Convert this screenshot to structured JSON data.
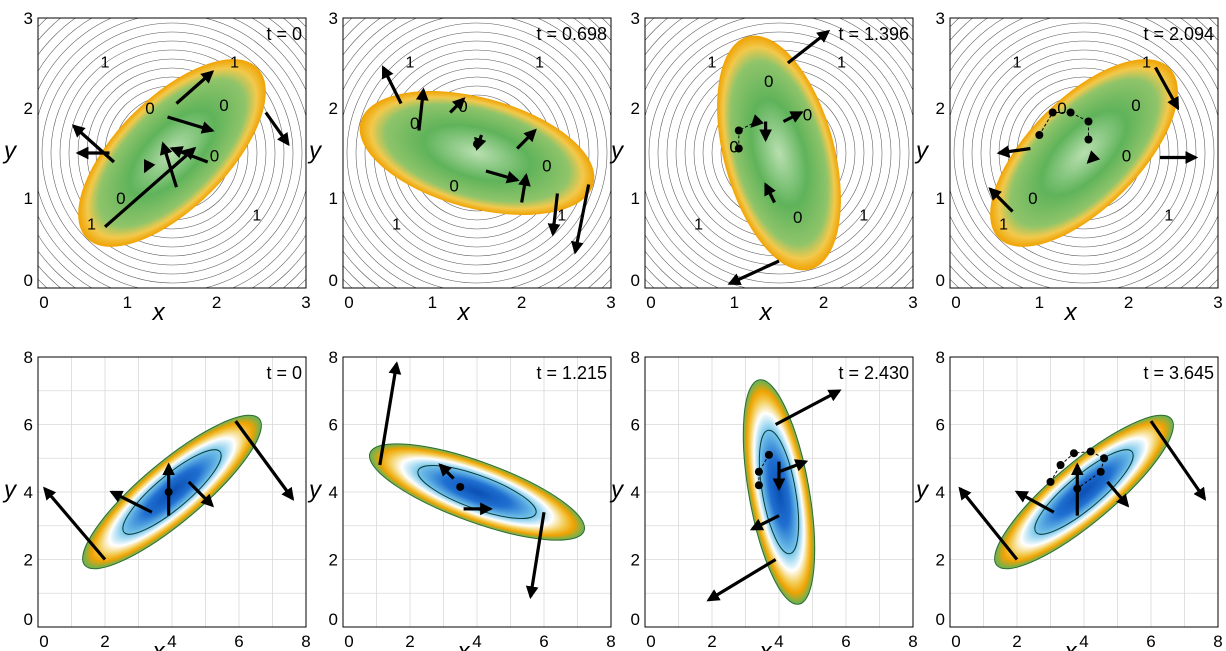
{
  "colors": {
    "green": "#5fb35a",
    "yellow": "#f2c94c",
    "orange": "#f0a202",
    "blue": "#1f6fd1",
    "cyan": "#77c7ea",
    "contour": "#111111",
    "grid": "#d9d9d9"
  },
  "panels": [
    {
      "row": 0,
      "col": 0,
      "range": [
        0,
        3
      ],
      "ticks": [
        0,
        1,
        2,
        3
      ],
      "time_label": "t = 0",
      "x_label": "x",
      "y_label": "y",
      "ellipse": {
        "cx": 1.5,
        "cy": 1.5,
        "a": 1.35,
        "b": 0.62,
        "angle": 45
      },
      "zero_labels": [
        "0",
        "0",
        "0",
        "0"
      ],
      "one_labels": [
        "1",
        "1",
        "1",
        "1"
      ],
      "arrows": [
        [
          0.75,
          0.68,
          1.75,
          1.55
        ],
        [
          1.55,
          1.12,
          1.4,
          1.6
        ],
        [
          1.45,
          1.9,
          1.95,
          1.75
        ],
        [
          2.55,
          1.95,
          2.8,
          1.6
        ],
        [
          0.85,
          1.4,
          0.4,
          1.8
        ],
        [
          0.8,
          1.5,
          0.45,
          1.5
        ],
        [
          1.55,
          2.05,
          1.95,
          2.4
        ],
        [
          1.9,
          1.4,
          1.5,
          1.55
        ],
        [
          1.25,
          1.4,
          1.2,
          1.3
        ]
      ],
      "dots": [],
      "heat_scheme": "phase"
    },
    {
      "row": 0,
      "col": 1,
      "range": [
        0,
        3
      ],
      "ticks": [
        0,
        1,
        2,
        3
      ],
      "time_label": "t = 0.698",
      "x_label": "x",
      "y_label": "y",
      "ellipse": {
        "cx": 1.5,
        "cy": 1.5,
        "a": 1.35,
        "b": 0.62,
        "angle": 165
      },
      "zero_labels": [
        "0",
        "0",
        "0",
        "0"
      ],
      "one_labels": [
        "1",
        "1",
        "1",
        "1"
      ],
      "arrows": [
        [
          0.65,
          2.05,
          0.45,
          2.45
        ],
        [
          0.85,
          1.75,
          0.9,
          2.2
        ],
        [
          1.2,
          1.95,
          1.35,
          2.1
        ],
        [
          1.55,
          1.7,
          1.5,
          1.55
        ],
        [
          1.95,
          1.55,
          2.15,
          1.75
        ],
        [
          1.6,
          1.3,
          1.95,
          1.2
        ],
        [
          2.0,
          0.95,
          2.05,
          1.25
        ],
        [
          2.4,
          1.05,
          2.35,
          0.6
        ],
        [
          2.75,
          1.15,
          2.6,
          0.4
        ]
      ],
      "dots": [
        [
          1.5,
          1.6
        ]
      ],
      "heat_scheme": "phase"
    },
    {
      "row": 0,
      "col": 2,
      "range": [
        0,
        3
      ],
      "ticks": [
        0,
        1,
        2,
        3
      ],
      "time_label": "t = 1.396",
      "x_label": "x",
      "y_label": "y",
      "ellipse": {
        "cx": 1.5,
        "cy": 1.5,
        "a": 1.35,
        "b": 0.62,
        "angle": 105
      },
      "zero_labels": [
        "0",
        "0",
        "0",
        "0"
      ],
      "one_labels": [
        "1",
        "1",
        "1",
        "1"
      ],
      "arrows": [
        [
          1.6,
          2.5,
          2.05,
          2.85
        ],
        [
          1.55,
          1.85,
          1.75,
          1.95
        ],
        [
          1.35,
          1.85,
          1.35,
          1.65
        ],
        [
          1.45,
          0.95,
          1.35,
          1.15
        ],
        [
          1.5,
          0.3,
          0.95,
          0.05
        ],
        [
          1.25,
          1.85,
          1.2,
          1.8
        ]
      ],
      "dots": [
        [
          1.05,
          1.55
        ],
        [
          1.05,
          1.75
        ],
        [
          1.25,
          1.85
        ]
      ],
      "heat_scheme": "phase"
    },
    {
      "row": 0,
      "col": 3,
      "range": [
        0,
        3
      ],
      "ticks": [
        0,
        1,
        2,
        3
      ],
      "time_label": "t = 2.094",
      "x_label": "x",
      "y_label": "y",
      "ellipse": {
        "cx": 1.5,
        "cy": 1.5,
        "a": 1.35,
        "b": 0.62,
        "angle": 45
      },
      "zero_labels": [
        "0",
        "0",
        "0",
        "0"
      ],
      "one_labels": [
        "1",
        "1",
        "1",
        "1"
      ],
      "arrows": [
        [
          0.7,
          0.85,
          0.45,
          1.1
        ],
        [
          2.3,
          2.45,
          2.55,
          2.0
        ],
        [
          0.9,
          1.55,
          0.55,
          1.5
        ],
        [
          2.35,
          1.45,
          2.75,
          1.45
        ],
        [
          1.6,
          1.45,
          1.55,
          1.4
        ]
      ],
      "dots": [
        [
          1.0,
          1.7
        ],
        [
          1.15,
          1.95
        ],
        [
          1.35,
          1.95
        ],
        [
          1.55,
          1.85
        ],
        [
          1.55,
          1.65
        ]
      ],
      "heat_scheme": "phase"
    },
    {
      "row": 1,
      "col": 0,
      "range": [
        0,
        8
      ],
      "ticks": [
        0,
        2,
        4,
        6,
        8
      ],
      "time_label": "t = 0",
      "x_label": "x",
      "y_label": "y",
      "ellipse": {
        "cx": 4,
        "cy": 4,
        "a": 3.4,
        "b": 0.9,
        "angle": 40
      },
      "arrows": [
        [
          2.0,
          2.0,
          0.2,
          4.1
        ],
        [
          3.4,
          3.4,
          2.2,
          4.0
        ],
        [
          3.9,
          3.3,
          3.9,
          4.8
        ],
        [
          4.5,
          4.3,
          5.2,
          3.6
        ],
        [
          5.9,
          6.1,
          7.6,
          3.8
        ]
      ],
      "dots": [
        [
          3.9,
          4.0
        ]
      ],
      "heat_scheme": "density"
    },
    {
      "row": 1,
      "col": 1,
      "range": [
        0,
        8
      ],
      "ticks": [
        0,
        2,
        4,
        6,
        8
      ],
      "time_label": "t = 1.215",
      "x_label": "x",
      "y_label": "y",
      "ellipse": {
        "cx": 4,
        "cy": 4,
        "a": 3.4,
        "b": 0.9,
        "angle": 160
      },
      "arrows": [
        [
          1.1,
          4.8,
          1.6,
          7.8
        ],
        [
          3.3,
          4.4,
          2.9,
          4.8
        ],
        [
          3.6,
          3.5,
          4.4,
          3.5
        ],
        [
          6.0,
          3.4,
          5.6,
          0.9
        ]
      ],
      "dots": [
        [
          3.5,
          4.15
        ]
      ],
      "heat_scheme": "density"
    },
    {
      "row": 1,
      "col": 2,
      "range": [
        0,
        8
      ],
      "ticks": [
        0,
        2,
        4,
        6,
        8
      ],
      "time_label": "t = 2.430",
      "x_label": "x",
      "y_label": "y",
      "ellipse": {
        "cx": 4,
        "cy": 4,
        "a": 3.4,
        "b": 0.9,
        "angle": 100
      },
      "arrows": [
        [
          3.9,
          6.0,
          5.8,
          7.0
        ],
        [
          4.0,
          4.6,
          4.8,
          4.9
        ],
        [
          4.0,
          3.3,
          3.2,
          2.9
        ],
        [
          3.9,
          2.0,
          1.9,
          0.8
        ],
        [
          4.0,
          4.9,
          4.0,
          4.1
        ]
      ],
      "dots": [
        [
          3.4,
          4.2
        ],
        [
          3.4,
          4.6
        ],
        [
          3.7,
          5.1
        ]
      ],
      "heat_scheme": "density"
    },
    {
      "row": 1,
      "col": 3,
      "range": [
        0,
        8
      ],
      "ticks": [
        0,
        2,
        4,
        6,
        8
      ],
      "time_label": "t = 3.645",
      "x_label": "x",
      "y_label": "y",
      "ellipse": {
        "cx": 4,
        "cy": 4,
        "a": 3.4,
        "b": 0.9,
        "angle": 40
      },
      "arrows": [
        [
          2.0,
          2.0,
          0.3,
          4.1
        ],
        [
          3.1,
          3.4,
          2.0,
          4.0
        ],
        [
          3.8,
          3.3,
          3.8,
          4.8
        ],
        [
          4.7,
          4.3,
          5.3,
          3.6
        ],
        [
          6.0,
          6.1,
          7.6,
          3.8
        ]
      ],
      "dots": [
        [
          3.0,
          4.3
        ],
        [
          3.3,
          4.8
        ],
        [
          3.7,
          5.15
        ],
        [
          4.2,
          5.2
        ],
        [
          4.6,
          5.0
        ],
        [
          4.5,
          4.6
        ],
        [
          3.8,
          4.1
        ]
      ],
      "heat_scheme": "density"
    }
  ]
}
